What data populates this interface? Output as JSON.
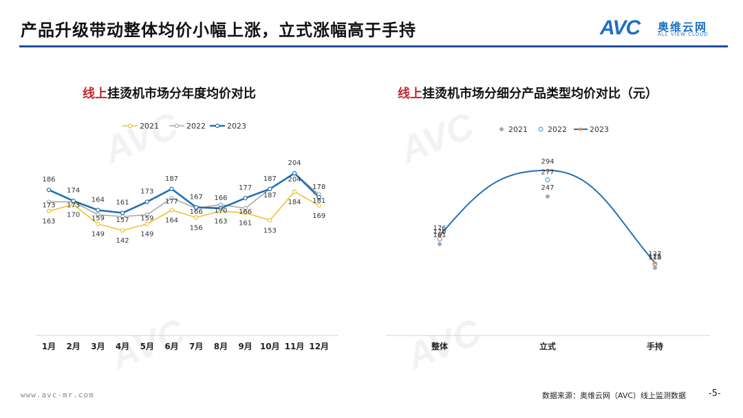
{
  "header": {
    "title": "产品升级带动整体均价小幅上涨，立式涨幅高于手持",
    "logo_avc": "AVC",
    "logo_cn": "奥维云网",
    "logo_en": "ALL VIEW CLOUD"
  },
  "footer": {
    "url": "www.avc-mr.com",
    "source": "数据来源：奥维云网（AVC）线上监测数据",
    "page": "-5-"
  },
  "chart_data": [
    {
      "type": "line",
      "title_prefix": "线上",
      "title_rest": "挂烫机市场分年度均价对比",
      "categories": [
        "1月",
        "2月",
        "3月",
        "4月",
        "5月",
        "6月",
        "7月",
        "8月",
        "9月",
        "10月",
        "11月",
        "12月"
      ],
      "series": [
        {
          "name": "2021",
          "color": "#f2c12e",
          "values": [
            163,
            170,
            149,
            142,
            149,
            164,
            156,
            163,
            161,
            153,
            184,
            169
          ]
        },
        {
          "name": "2022",
          "color": "#a8a8a8",
          "values": [
            173,
            173,
            159,
            157,
            159,
            177,
            166,
            170,
            166,
            187,
            204,
            181
          ]
        },
        {
          "name": "2023",
          "color": "#1f6fb5",
          "values": [
            186,
            174,
            164,
            161,
            173,
            187,
            167,
            166,
            177,
            187,
            204,
            178
          ]
        }
      ],
      "legend": "top"
    },
    {
      "type": "line",
      "title_prefix": "线上",
      "title_rest": "挂烫机市场分细分产品类型均价对比（元）",
      "categories": [
        "整体",
        "立式",
        "手持"
      ],
      "series": [
        {
          "name": "2021",
          "color": "#a8a8a8",
          "values": [
            161,
            247,
            118
          ]
        },
        {
          "name": "2022",
          "color": "#5b9bd5",
          "values": [
            170,
            277,
            125
          ]
        },
        {
          "name": "2023",
          "color": "#f28e2b",
          "values": [
            176,
            294,
            127
          ]
        }
      ],
      "legend": "top"
    }
  ]
}
